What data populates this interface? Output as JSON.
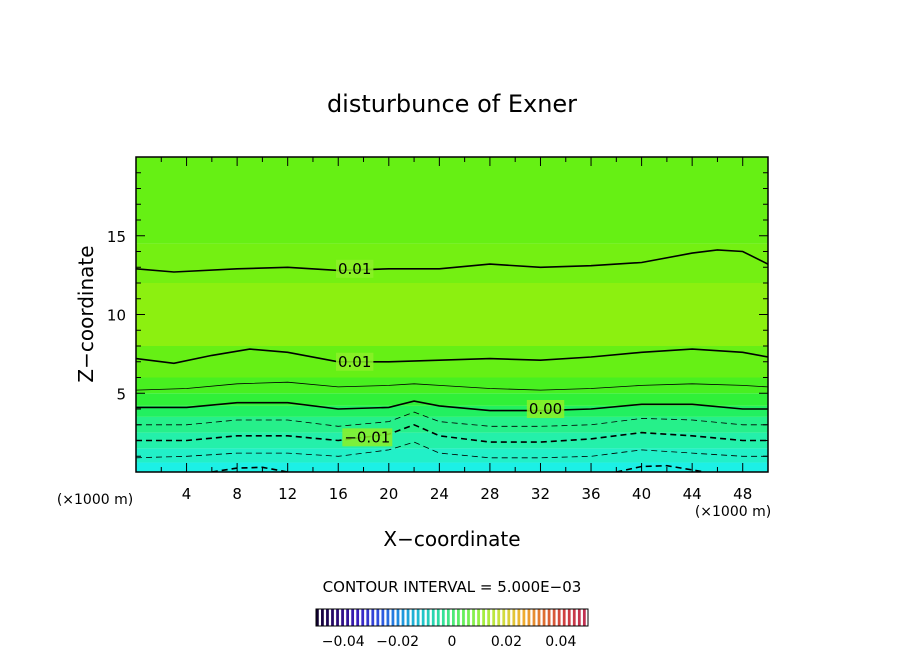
{
  "chart_data": {
    "type": "heatmap",
    "title": "disturbunce of Exner",
    "xlabel": "X−coordinate",
    "ylabel": "Z−coordinate",
    "x_unit": "(×1000 m)",
    "y_unit": "(×1000 m)",
    "xlim": [
      0,
      50
    ],
    "ylim": [
      0,
      20
    ],
    "x_ticks": [
      4,
      8,
      12,
      16,
      20,
      24,
      28,
      32,
      36,
      40,
      44,
      48
    ],
    "y_ticks": [
      5,
      10,
      15
    ],
    "contour_interval_label": "CONTOUR INTERVAL = 5.000E−03",
    "contour_labels": [
      {
        "text": "0.01",
        "x": 17.3,
        "z": 12.9
      },
      {
        "text": "0.01",
        "x": 17.3,
        "z": 7.0
      },
      {
        "text": "0.00",
        "x": 32.4,
        "z": 4.0
      },
      {
        "text": "−0.01",
        "x": 18.3,
        "z": 2.2
      }
    ],
    "contours": [
      {
        "level": 0.01,
        "style": "solid",
        "width": 1.6,
        "x": [
          0,
          3,
          8,
          12,
          16,
          20,
          24,
          28,
          32,
          36,
          40,
          44,
          46,
          48,
          50
        ],
        "z": [
          12.9,
          12.7,
          12.9,
          13.0,
          12.8,
          12.9,
          12.9,
          13.2,
          13.0,
          13.1,
          13.3,
          13.9,
          14.1,
          14.0,
          13.2
        ]
      },
      {
        "level": 0.01,
        "style": "solid",
        "width": 1.6,
        "x": [
          0,
          3,
          6,
          9,
          12,
          16,
          20,
          24,
          28,
          32,
          36,
          40,
          44,
          48,
          50
        ],
        "z": [
          7.2,
          6.9,
          7.4,
          7.8,
          7.6,
          7.0,
          7.0,
          7.1,
          7.2,
          7.1,
          7.3,
          7.6,
          7.8,
          7.6,
          7.3
        ]
      },
      {
        "level": 0.005,
        "style": "solid",
        "width": 0.8,
        "x": [
          0,
          4,
          8,
          12,
          16,
          20,
          22,
          24,
          28,
          32,
          36,
          40,
          44,
          48,
          50
        ],
        "z": [
          5.2,
          5.3,
          5.6,
          5.7,
          5.4,
          5.5,
          5.6,
          5.5,
          5.3,
          5.2,
          5.3,
          5.5,
          5.6,
          5.5,
          5.4
        ]
      },
      {
        "level": 0.0,
        "style": "solid",
        "width": 1.6,
        "x": [
          0,
          4,
          8,
          12,
          16,
          20,
          22,
          24,
          28,
          32,
          36,
          40,
          44,
          48,
          50
        ],
        "z": [
          4.1,
          4.1,
          4.4,
          4.4,
          4.0,
          4.1,
          4.5,
          4.2,
          3.9,
          3.9,
          4.0,
          4.3,
          4.3,
          4.0,
          4.0
        ]
      },
      {
        "level": -0.005,
        "style": "dashed",
        "width": 0.8,
        "x": [
          0,
          4,
          8,
          12,
          16,
          20,
          22,
          24,
          28,
          32,
          36,
          40,
          44,
          48,
          50
        ],
        "z": [
          3.0,
          3.0,
          3.3,
          3.3,
          2.9,
          3.2,
          3.8,
          3.2,
          2.9,
          2.9,
          3.0,
          3.4,
          3.3,
          3.0,
          3.0
        ]
      },
      {
        "level": -0.01,
        "style": "dashed",
        "width": 1.6,
        "x": [
          0,
          4,
          8,
          12,
          16,
          20,
          22,
          24,
          28,
          32,
          36,
          40,
          44,
          48,
          50
        ],
        "z": [
          2.0,
          2.0,
          2.3,
          2.3,
          2.0,
          2.4,
          3.0,
          2.3,
          1.9,
          1.9,
          2.1,
          2.5,
          2.3,
          2.0,
          2.0
        ]
      },
      {
        "level": -0.015,
        "style": "dashed",
        "width": 0.8,
        "x": [
          0,
          4,
          8,
          12,
          16,
          20,
          22,
          24,
          28,
          32,
          36,
          40,
          44,
          48,
          50
        ],
        "z": [
          0.9,
          1.0,
          1.2,
          1.2,
          1.0,
          1.4,
          1.9,
          1.2,
          0.9,
          0.9,
          1.0,
          1.4,
          1.2,
          1.0,
          1.0
        ]
      }
    ],
    "minor_closed_contours": [
      {
        "style": "dashed",
        "width": 1.6,
        "x": [
          6,
          8,
          10,
          12
        ],
        "z": [
          0,
          0.25,
          0.3,
          0
        ]
      },
      {
        "style": "dashed",
        "width": 1.6,
        "x": [
          38,
          40,
          42,
          45
        ],
        "z": [
          0,
          0.35,
          0.4,
          0
        ]
      }
    ],
    "field_bands": [
      {
        "z_bottom": 0.0,
        "color": "#1cf0e6"
      },
      {
        "z_bottom": 0.6,
        "color": "#22f0c8"
      },
      {
        "z_bottom": 1.5,
        "color": "#24f0aa"
      },
      {
        "z_bottom": 2.5,
        "color": "#26f08a"
      },
      {
        "z_bottom": 3.5,
        "color": "#22f060"
      },
      {
        "z_bottom": 4.2,
        "color": "#30f038"
      },
      {
        "z_bottom": 5.0,
        "color": "#48f020"
      },
      {
        "z_bottom": 6.0,
        "color": "#66f015"
      },
      {
        "z_bottom": 8.0,
        "color": "#8cf010"
      },
      {
        "z_bottom": 12.0,
        "color": "#74f012"
      },
      {
        "z_bottom": 14.5,
        "color": "#66f014"
      }
    ],
    "colorbar": {
      "range": [
        -0.05,
        0.05
      ],
      "tick_labels": [
        "−0.04",
        "−0.02",
        "0",
        "0.02",
        "0.04"
      ],
      "tick_values": [
        -0.04,
        -0.02,
        0,
        0.02,
        0.04
      ],
      "colors": [
        "#100030",
        "#2a0a78",
        "#3a20c0",
        "#3050e0",
        "#2090e0",
        "#20c0d0",
        "#30e0a0",
        "#60f060",
        "#a0f040",
        "#d0e040",
        "#f0b030",
        "#e07030",
        "#d04040",
        "#c03050"
      ]
    },
    "grid": false,
    "legend": "none"
  }
}
